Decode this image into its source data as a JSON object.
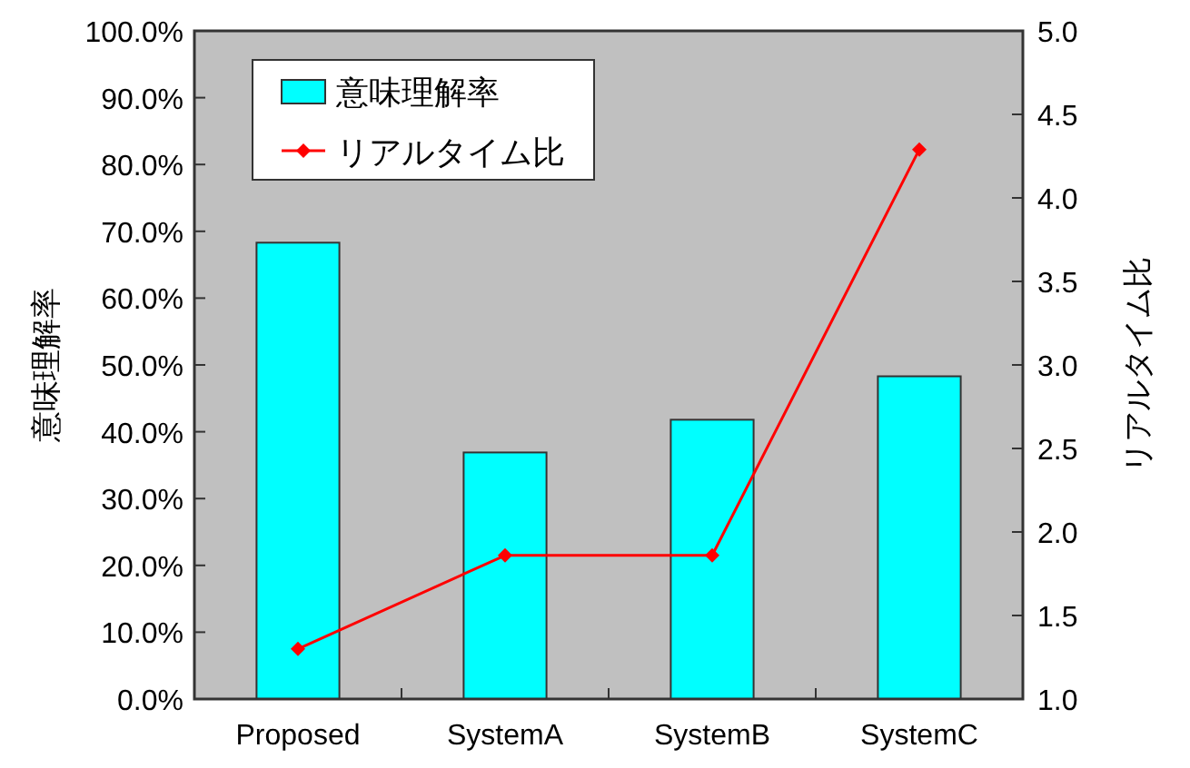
{
  "chart_data": {
    "type": "bar",
    "categories": [
      "Proposed",
      "SystemA",
      "SystemB",
      "SystemC"
    ],
    "ylabel": "意味理解率",
    "y2label": "リアルタイム比",
    "series": [
      {
        "name": "意味理解率",
        "color": "#00ffff",
        "values": [
          68.3,
          36.9,
          41.8,
          48.3
        ]
      },
      {
        "name": "リアルタイム比",
        "type": "line",
        "axis": "y2",
        "color": "#ff0000",
        "marker": "diamond",
        "values": [
          1.3,
          1.86,
          1.86,
          4.29
        ]
      }
    ],
    "ylim": [
      0,
      100
    ],
    "yticks": [
      {
        "value": 0,
        "label": "0.0%"
      },
      {
        "value": 10,
        "label": "10.0%"
      },
      {
        "value": 20,
        "label": "20.0%"
      },
      {
        "value": 30,
        "label": "30.0%"
      },
      {
        "value": 40,
        "label": "40.0%"
      },
      {
        "value": 50,
        "label": "50.0%"
      },
      {
        "value": 60,
        "label": "60.0%"
      },
      {
        "value": 70,
        "label": "70.0%"
      },
      {
        "value": 80,
        "label": "80.0%"
      },
      {
        "value": 90,
        "label": "90.0%"
      },
      {
        "value": 100,
        "label": "100.0%"
      }
    ],
    "y2lim": [
      1,
      5
    ],
    "y2ticks": [
      {
        "value": 1,
        "label": "1.0"
      },
      {
        "value": 1.5,
        "label": "1.5"
      },
      {
        "value": 2,
        "label": "2.0"
      },
      {
        "value": 2.5,
        "label": "2.5"
      },
      {
        "value": 3,
        "label": "3.0"
      },
      {
        "value": 3.5,
        "label": "3.5"
      },
      {
        "value": 4,
        "label": "4.0"
      },
      {
        "value": 4.5,
        "label": "4.5"
      },
      {
        "value": 5,
        "label": "5.0"
      }
    ],
    "legend": "top left",
    "grid": false
  }
}
